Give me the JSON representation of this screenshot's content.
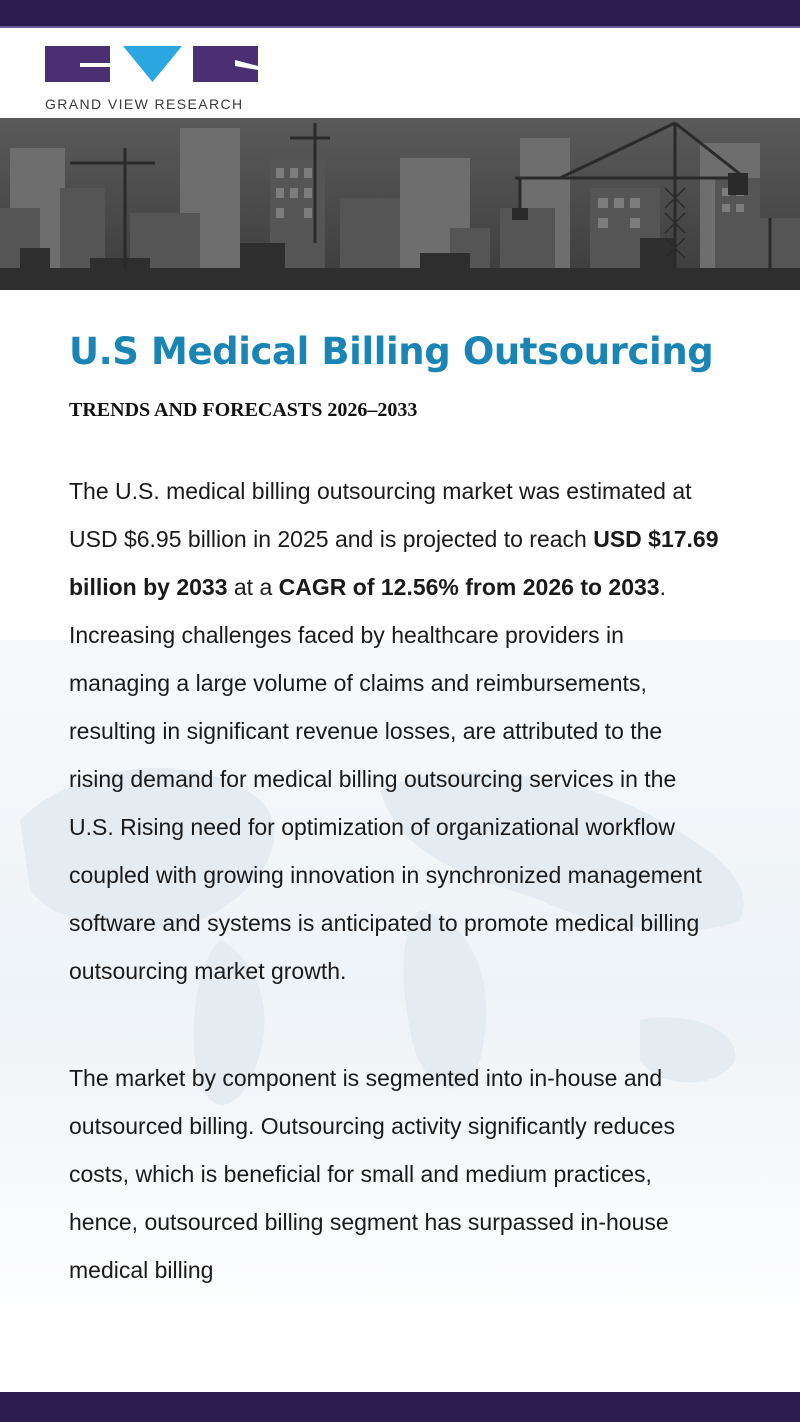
{
  "brand": {
    "name": "GRAND VIEW RESEARCH",
    "colors": {
      "bar": "#2c1b4e",
      "logo_block": "#4b2f73",
      "logo_triangle": "#2aa6e0",
      "title": "#1a85b5"
    }
  },
  "banner": {
    "image": "city skyline with construction cranes"
  },
  "heading": {
    "title": "U.S Medical Billing Outsourcing",
    "subtitle": "TRENDS AND FORECASTS 2026–2033"
  },
  "paragraph1": {
    "text_a": "The U.S. medical billing outsourcing market was estimated at USD $6.95 billion in 2025 and is projected to reach ",
    "bold_a": "USD $17.69 billion by 2033",
    "text_b": " at a ",
    "bold_b": "CAGR of 12.56% from 2026 to 2033",
    "text_c": ". Increasing challenges faced by healthcare providers in managing a large volume of claims and reimbursements, resulting in significant revenue losses, are attributed to the rising demand for medical billing outsourcing services in the U.S. Rising need for optimization of organizational workflow coupled with growing innovation in synchronized management software and systems is anticipated to promote medical billing outsourcing market growth."
  },
  "paragraph2": {
    "text": "The market by component is segmented into in-house and outsourced billing. Outsourcing activity significantly reduces costs, which is beneficial for small and medium practices, hence, outsourced billing segment has surpassed in-house medical billing"
  }
}
